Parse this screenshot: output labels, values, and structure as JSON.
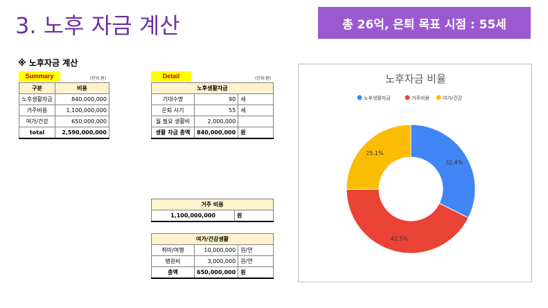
{
  "slide": {
    "title": "3. 노후 자금 계산",
    "banner": "총 26억, 은퇴 목표 시점  : 55세"
  },
  "section_heading": "※ 노후자금 계산",
  "summary": {
    "tag": "Summary",
    "unit": "(단위:원)",
    "headers": [
      "구분",
      "비용"
    ],
    "rows": [
      {
        "label": "노후생활자금",
        "value": "840,000,000"
      },
      {
        "label": "거주비용",
        "value": "1,100,000,000"
      },
      {
        "label": "여가/건강",
        "value": "650,000,000"
      },
      {
        "label": "total",
        "value": "2,590,000,000"
      }
    ]
  },
  "detail": {
    "tag": "Detail",
    "unit": "(단위:원)",
    "header": "노후생활자금",
    "rows": [
      {
        "label": "기대수명",
        "value": "90",
        "unit": "세"
      },
      {
        "label": "은퇴 시기",
        "value": "55",
        "unit": "세"
      },
      {
        "label": "월 필요 생활비",
        "value": "2,000,000",
        "unit": ""
      },
      {
        "label": "생활 자금 총액",
        "value": "840,000,000",
        "unit": "원"
      }
    ]
  },
  "housing": {
    "header": "거주 비용",
    "value": "1,100,000,000",
    "unit": "원"
  },
  "leisure": {
    "header": "여가/건강생활",
    "rows": [
      {
        "label": "취미/여행",
        "value": "10,000,000",
        "unit": "원/연"
      },
      {
        "label": "병원비",
        "value": "3,000,000",
        "unit": "원/연"
      },
      {
        "label": "총액",
        "value": "650,000,000",
        "unit": "원"
      }
    ]
  },
  "chart_data": {
    "type": "pie",
    "title": "노후자금 비율",
    "categories": [
      "노후생활자금",
      "거주비용",
      "여가/건강"
    ],
    "values": [
      32.4,
      42.5,
      25.1
    ],
    "labels": [
      "32.4%",
      "42.5%",
      "25.1%"
    ],
    "colors": [
      "#4285f4",
      "#ea4335",
      "#fbbc04"
    ],
    "legend": "top",
    "donut": true
  }
}
